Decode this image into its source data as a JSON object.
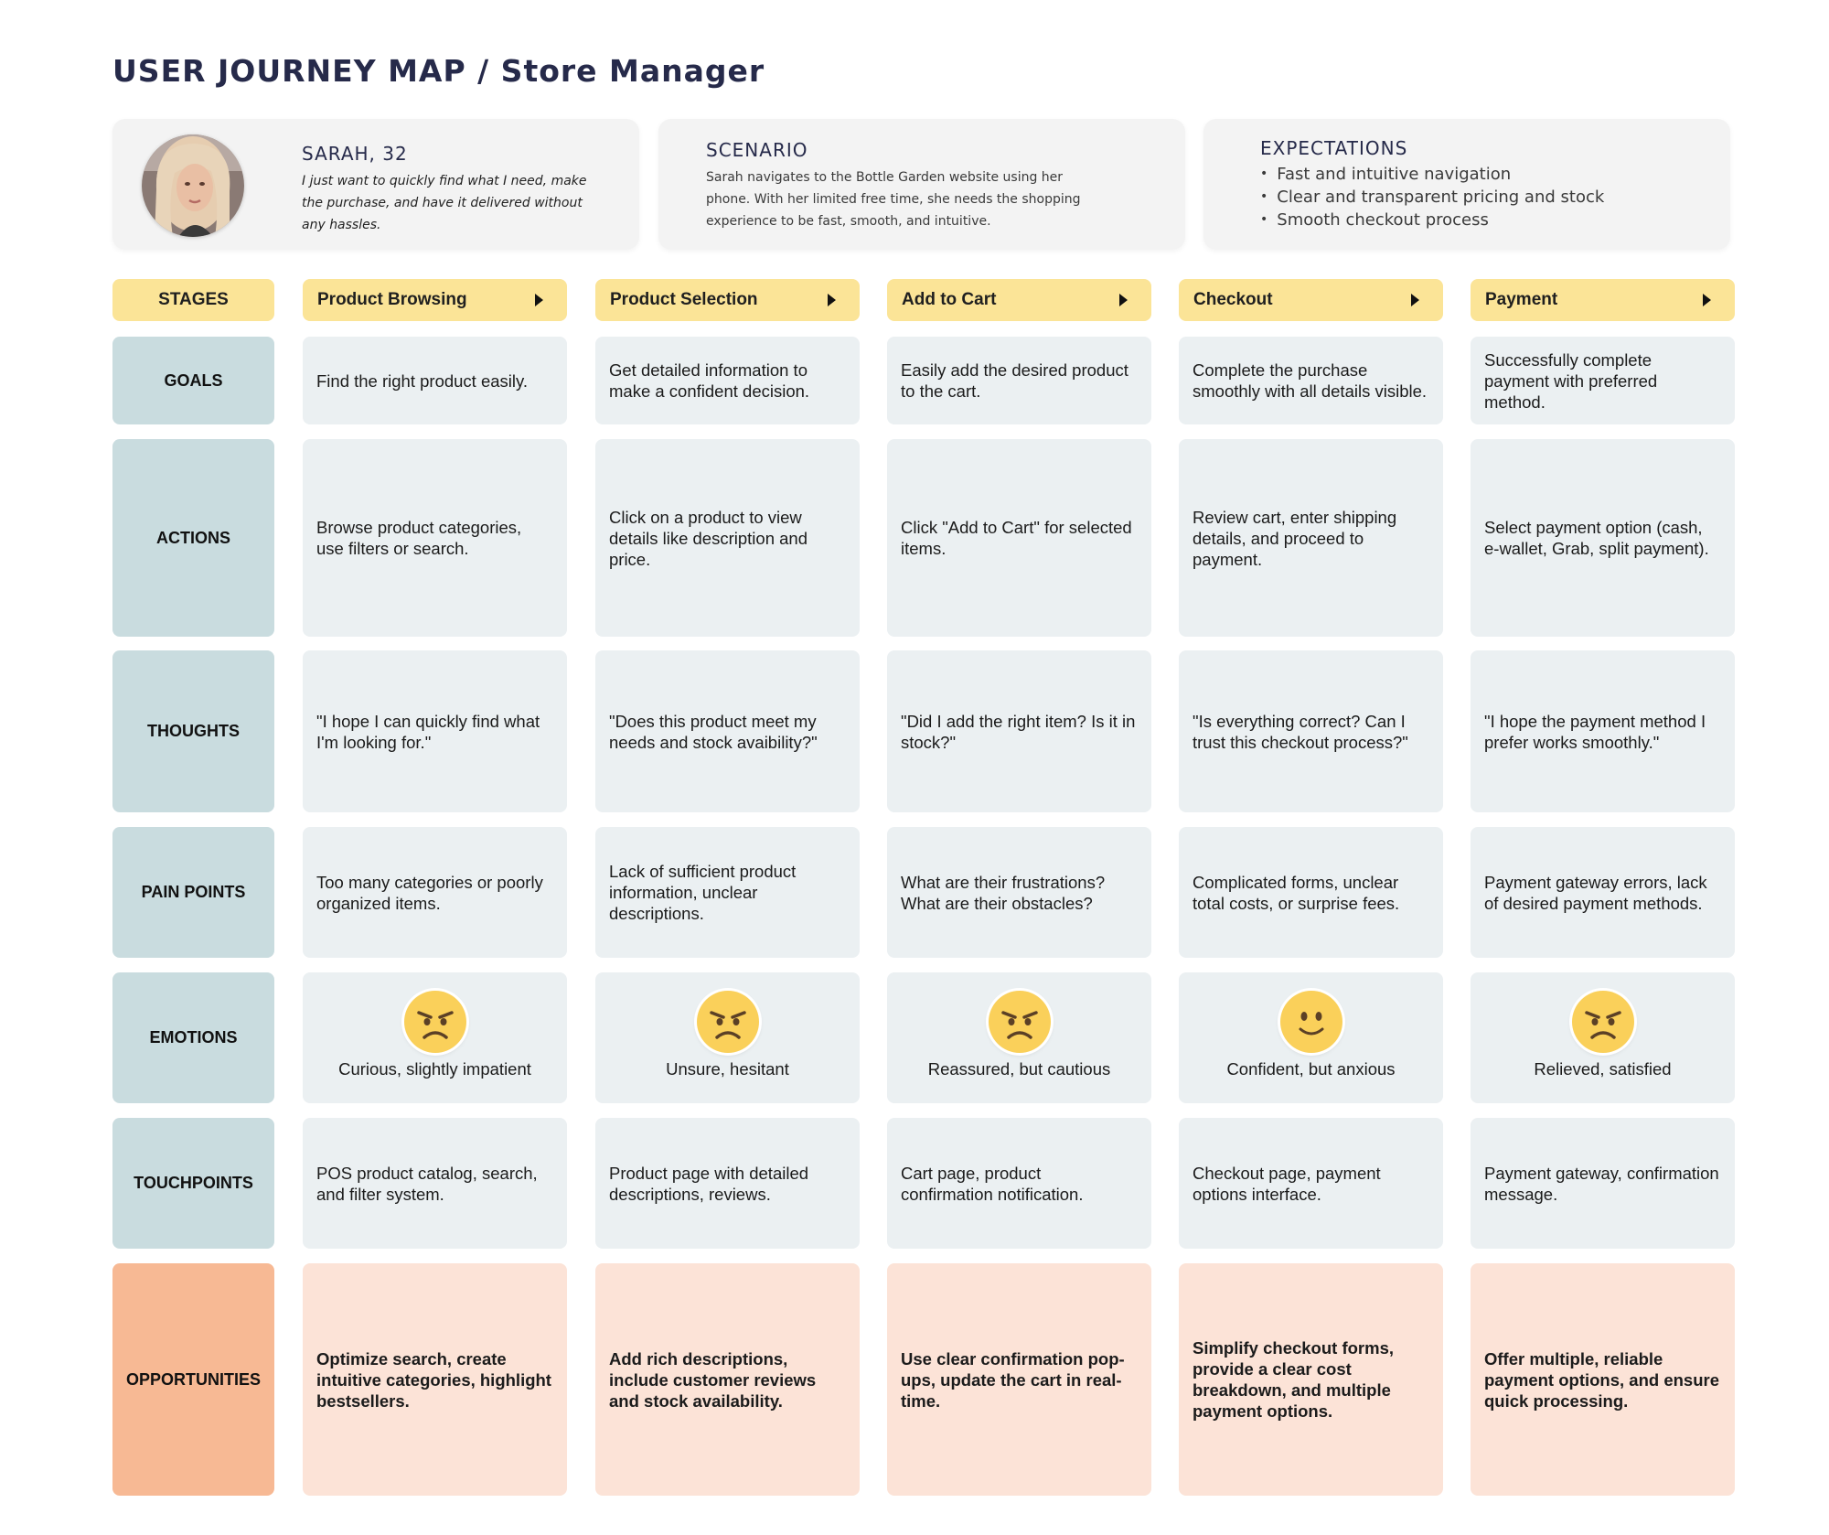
{
  "title": "USER JOURNEY MAP / Store Manager",
  "persona": {
    "name": "SARAH, 32",
    "quote": "I just want to quickly find what I need, make the purchase, and have it delivered without any hassles."
  },
  "scenario": {
    "heading": "SCENARIO",
    "text": "Sarah navigates to the Bottle Garden website using her phone. With her limited free time, she needs the shopping experience to be fast, smooth, and intuitive."
  },
  "expectations": {
    "heading": "EXPECTATIONS",
    "items": [
      "Fast and intuitive navigation",
      "Clear and transparent pricing and stock",
      "Smooth checkout process"
    ]
  },
  "stages": {
    "label": "STAGES",
    "items": [
      "Product Browsing",
      "Product Selection",
      "Add to Cart",
      "Checkout",
      "Payment"
    ]
  },
  "rows": {
    "goals": {
      "label": "GOALS",
      "cells": [
        "Find the right product easily.",
        "Get detailed information to make a confident decision.",
        "Easily add the desired product to the cart.",
        "Complete the purchase smoothly with all details visible.",
        "Successfully complete payment with preferred method."
      ]
    },
    "actions": {
      "label": "ACTIONS",
      "cells": [
        "Browse product categories, use filters or search.",
        "Click on a product to view details like description and price.",
        "Click \"Add to Cart\" for selected items.",
        "Review cart, enter shipping details, and proceed to payment.",
        "Select payment option (cash, e-wallet, Grab, split payment)."
      ]
    },
    "thoughts": {
      "label": "THOUGHTS",
      "cells": [
        "\"I hope I can quickly find what I'm looking for.\"",
        "\"Does this product meet my needs and stock avaibility?\"",
        "\"Did I add the right item? Is it in stock?\"",
        "\"Is everything correct? Can I trust this checkout process?\"",
        "\"I hope the payment method I prefer works smoothly.\""
      ]
    },
    "pain_points": {
      "label": "PAIN POINTS",
      "cells": [
        "Too many categories or poorly organized items.",
        "Lack of sufficient product information, unclear descriptions.",
        "What are their frustrations? What are their obstacles?",
        "Complicated forms, unclear total costs, or surprise fees.",
        "Payment gateway errors, lack of desired payment methods."
      ]
    },
    "emotions": {
      "label": "EMOTIONS",
      "cells": [
        {
          "text": "Curious, slightly impatient",
          "icon": "angry-face-icon"
        },
        {
          "text": "Unsure, hesitant",
          "icon": "angry-face-icon"
        },
        {
          "text": "Reassured, but cautious",
          "icon": "angry-face-icon"
        },
        {
          "text": "Confident, but anxious",
          "icon": "slightly-smiling-face-icon"
        },
        {
          "text": "Relieved, satisfied",
          "icon": "angry-face-icon"
        }
      ]
    },
    "touchpoints": {
      "label": "TOUCHPOINTS",
      "cells": [
        "POS product catalog, search, and filter system.",
        "Product page with detailed descriptions, reviews.",
        "Cart page, product confirmation notification.",
        "Checkout page, payment options interface.",
        "Payment gateway, confirmation message."
      ]
    },
    "opportunities": {
      "label": "OPPORTUNITIES",
      "cells": [
        "Optimize search, create intuitive categories, highlight bestsellers.",
        "Add rich descriptions, include customer reviews and stock availability.",
        "Use clear confirmation pop-ups, update the cart in real-time.",
        "Simplify checkout forms, provide a clear cost breakdown, and multiple payment options.",
        "Offer multiple, reliable payment options, and ensure quick processing."
      ]
    }
  },
  "colors": {
    "stage": "#fbe497",
    "row_label": "#c9dcdf",
    "cell": "#ebf0f2",
    "opportunity_label": "#f7b994",
    "opportunity_cell": "#fce3d7",
    "emoji_face": "#fad05a"
  }
}
